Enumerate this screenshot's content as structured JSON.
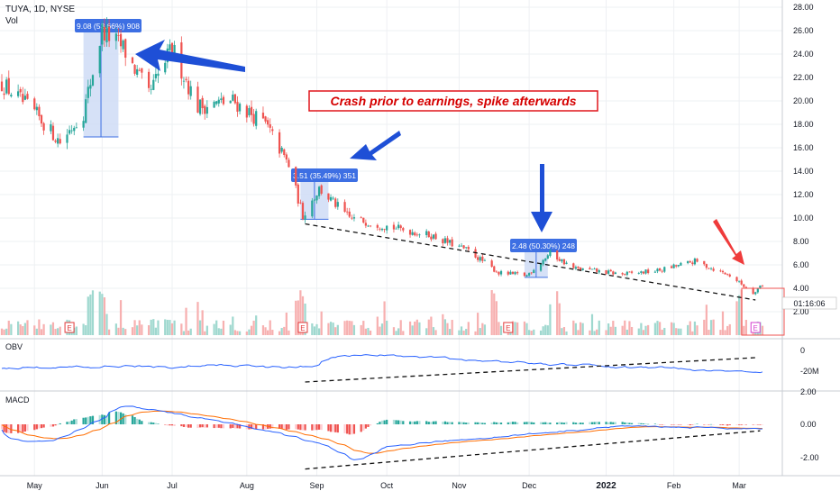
{
  "header": {
    "symbol_line": "TUYA, 1D, NYSE",
    "vol_label": "Vol"
  },
  "annotation": "Crash prior to earnings, spike afterwards",
  "panes": {
    "obv_label": "OBV",
    "macd_label": "MACD"
  },
  "last_price_time": "01:16:06",
  "earnings_marker": "E",
  "measure_labels": [
    "9.08 (53.66%) 908",
    "3.51 (35.49%) 351",
    "2.48 (50.30%) 248"
  ],
  "colors": {
    "up": "#26a69a",
    "down": "#ef5350",
    "up_vol": "#9fd8cf",
    "down_vol": "#f7b0b0",
    "obv_line": "#2962ff",
    "macd_line": "#2962ff",
    "signal_line": "#ff6d00",
    "annotation_border": "#e0151b",
    "annotation_text": "#d50000",
    "measure_fill": "#cfdcf6",
    "measure_label_bg": "#3d6fe3",
    "arrow_blue": "#1e4fd6",
    "arrow_red": "#ef3b3b",
    "earnings_e": "#e23a3a",
    "earnings_e_last": "#d63fcf"
  },
  "chart_data": [
    {
      "type": "candlestick",
      "title": "TUYA, 1D, NYSE",
      "x_ticks": [
        "May",
        "Jun",
        "Jul",
        "Aug",
        "Sep",
        "Oct",
        "Nov",
        "Dec",
        "2022",
        "Feb",
        "Mar"
      ],
      "y_ticks": [
        "2.00",
        "4.00",
        "6.00",
        "8.00",
        "10.00",
        "12.00",
        "14.00",
        "16.00",
        "18.00",
        "20.00",
        "22.00",
        "24.00",
        "26.00",
        "28.00"
      ],
      "ylim": [
        0,
        29
      ],
      "grid": true,
      "approx_close_path": [
        {
          "date": "2021-04-19",
          "close": 21.5
        },
        {
          "date": "2021-05-03",
          "close": 19.0
        },
        {
          "date": "2021-05-14",
          "close": 16.5
        },
        {
          "date": "2021-05-24",
          "close": 19.0
        },
        {
          "date": "2021-06-01",
          "close": 26.0
        },
        {
          "date": "2021-06-10",
          "close": 24.5
        },
        {
          "date": "2021-06-21",
          "close": 20.5
        },
        {
          "date": "2021-07-01",
          "close": 24.5
        },
        {
          "date": "2021-07-12",
          "close": 19.5
        },
        {
          "date": "2021-07-27",
          "close": 20.0
        },
        {
          "date": "2021-08-10",
          "close": 18.0
        },
        {
          "date": "2021-08-20",
          "close": 14.5
        },
        {
          "date": "2021-08-26",
          "close": 10.2
        },
        {
          "date": "2021-09-02",
          "close": 12.5
        },
        {
          "date": "2021-09-15",
          "close": 10.0
        },
        {
          "date": "2021-10-01",
          "close": 9.3
        },
        {
          "date": "2021-10-20",
          "close": 8.5
        },
        {
          "date": "2021-11-05",
          "close": 7.2
        },
        {
          "date": "2021-11-18",
          "close": 5.3
        },
        {
          "date": "2021-11-30",
          "close": 5.1
        },
        {
          "date": "2021-12-10",
          "close": 7.0
        },
        {
          "date": "2021-12-20",
          "close": 5.7
        },
        {
          "date": "2022-01-10",
          "close": 5.2
        },
        {
          "date": "2022-01-25",
          "close": 5.5
        },
        {
          "date": "2022-02-10",
          "close": 6.3
        },
        {
          "date": "2022-02-25",
          "close": 5.1
        },
        {
          "date": "2022-03-07",
          "close": 3.6
        },
        {
          "date": "2022-03-10",
          "close": 4.2
        }
      ],
      "measures": [
        {
          "label": "9.08 (53.66%) 908",
          "from": 16.92,
          "to": 26.0
        },
        {
          "label": "3.51 (35.49%) 351",
          "from": 9.89,
          "to": 13.4
        },
        {
          "label": "2.48 (50.30%) 248",
          "from": 4.93,
          "to": 7.41
        }
      ],
      "earnings_markers": 4
    },
    {
      "type": "line",
      "name": "OBV",
      "y_ticks": [
        "0",
        "-20M"
      ]
    },
    {
      "type": "line",
      "name": "MACD",
      "y_ticks": [
        "2.00",
        "0.00",
        "-2.00"
      ]
    }
  ]
}
